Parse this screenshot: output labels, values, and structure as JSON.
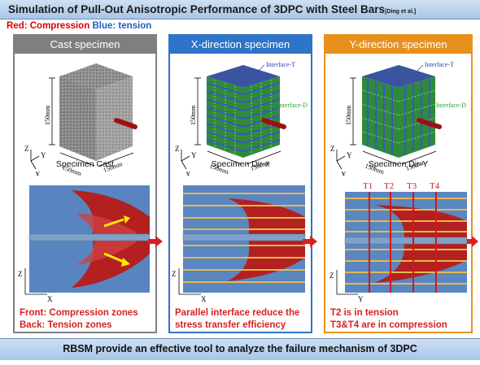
{
  "header": {
    "title": "Simulation of Pull-Out Anisotropic Performance of 3DPC with Steel Bars",
    "citation": "[Ding et al.]"
  },
  "legend": {
    "red": "Red: Compression",
    "blue": "Blue: tension"
  },
  "panels": [
    {
      "heading": "Cast specimen",
      "dims": {
        "height": "150mm",
        "width": "150mm",
        "depth": "150mm"
      },
      "axes": {
        "z": "Z",
        "y": "Y",
        "x": "X"
      },
      "specimen_label": "Specimen Cast",
      "contour_axes": {
        "z": "Z",
        "x": "X"
      },
      "caption_line1": "Front: Compression zones",
      "caption_line2": "Back: Tension zones"
    },
    {
      "heading": "X-direction specimen",
      "dims": {
        "height": "150mm",
        "width": "150mm",
        "depth": "150mm"
      },
      "axes": {
        "z": "Z",
        "y": "Y",
        "x": "X"
      },
      "interface_t": "Interface-T",
      "interface_d": "Interface-D",
      "specimen_label": "Specimen Dir-x",
      "contour_axes": {
        "z": "Z",
        "x": "X"
      },
      "caption_line1": "Parallel interface reduce the",
      "caption_line2": "stress transfer efficiency"
    },
    {
      "heading": "Y-direction specimen",
      "dims": {
        "height": "150mm",
        "width": "150mm",
        "depth": "150mm"
      },
      "axes": {
        "z": "Z",
        "y": "Y",
        "x": "X"
      },
      "interface_t": "Interface-T",
      "interface_d": "Interface-D",
      "specimen_label": "Specimen Dir-Y",
      "contour_axes": {
        "z": "Z",
        "y": "Y"
      },
      "sections": [
        "T1",
        "T2",
        "T3",
        "T4"
      ],
      "caption_line1": "T2 is in tension",
      "caption_line2": "T3&T4 are in compression"
    }
  ],
  "footer": "RBSM provide an effective tool to analyze the failure mechanism of 3DPC"
}
